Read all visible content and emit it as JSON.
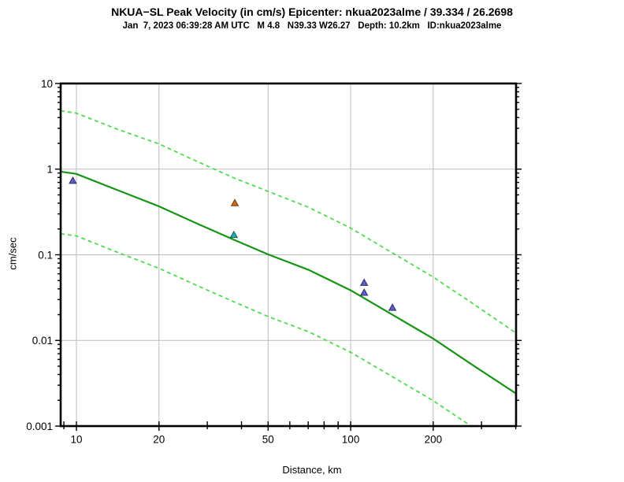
{
  "chart_data": {
    "type": "line",
    "title": "NKUA−SL Peak Velocity (in cm/s) Epicenter: nkua2023alme / 39.334 / 26.2698",
    "subtitle": "Jan  7, 2023 06:39:28 AM UTC   M 4.8   N39.33 W26.27   Depth: 10.2km   ID:nkua2023alme",
    "xlabel": "Distance, km",
    "ylabel": "cm/sec",
    "x_scale": "log",
    "y_scale": "log",
    "xlim": [
      8.76,
      401
    ],
    "ylim": [
      0.001,
      10
    ],
    "x_ticks": {
      "values": [
        10,
        20,
        50,
        100,
        200
      ],
      "labels": [
        "10",
        "20",
        "50",
        "100",
        "200"
      ]
    },
    "x_minor_ticks": [
      9,
      10,
      20,
      30,
      40,
      50,
      60,
      70,
      80,
      90,
      100,
      200,
      300,
      400
    ],
    "y_ticks": {
      "values": [
        10,
        1,
        0.1,
        0.01,
        0.001
      ],
      "labels": [
        "10",
        "1",
        "0.1",
        "0.01",
        "0.001"
      ]
    },
    "y_minor_pattern": [
      2,
      3,
      4,
      5,
      6,
      7,
      8,
      9
    ],
    "grid": {
      "x_values": [
        10,
        20,
        50,
        100,
        200
      ],
      "y_values": [
        1,
        0.1,
        0.01
      ],
      "color": "#bdbdbd"
    },
    "frame_color": "#000000",
    "legend": "none",
    "series": [
      {
        "name": "gmpe-median",
        "style": "solid",
        "color": "#169413",
        "width": 2.2,
        "points": [
          [
            8.76,
            0.935
          ],
          [
            10,
            0.88
          ],
          [
            14,
            0.575
          ],
          [
            20,
            0.368
          ],
          [
            28,
            0.226
          ],
          [
            37.5,
            0.15
          ],
          [
            50,
            0.101
          ],
          [
            70,
            0.067
          ],
          [
            100,
            0.0385
          ],
          [
            140,
            0.0205
          ],
          [
            200,
            0.0105
          ],
          [
            280,
            0.0051
          ],
          [
            401,
            0.0024
          ]
        ]
      },
      {
        "name": "gmpe-plus-sigma",
        "style": "dashed",
        "color": "#46dc46",
        "width": 1.7,
        "points": [
          [
            8.76,
            4.8
          ],
          [
            10,
            4.5
          ],
          [
            14,
            2.95
          ],
          [
            20,
            1.97
          ],
          [
            28,
            1.2
          ],
          [
            37.5,
            0.79
          ],
          [
            50,
            0.55
          ],
          [
            70,
            0.36
          ],
          [
            100,
            0.205
          ],
          [
            140,
            0.108
          ],
          [
            200,
            0.055
          ],
          [
            280,
            0.0267
          ],
          [
            401,
            0.0122
          ]
        ]
      },
      {
        "name": "gmpe-minus-sigma",
        "style": "dashed",
        "color": "#46dc46",
        "width": 1.7,
        "points": [
          [
            8.76,
            0.176
          ],
          [
            10,
            0.166
          ],
          [
            14,
            0.108
          ],
          [
            20,
            0.0695
          ],
          [
            28,
            0.0427
          ],
          [
            37.5,
            0.0283
          ],
          [
            50,
            0.019
          ],
          [
            70,
            0.0127
          ],
          [
            100,
            0.00727
          ],
          [
            140,
            0.00387
          ],
          [
            200,
            0.00198
          ],
          [
            280,
            0.00096
          ],
          [
            310,
            0.00078
          ]
        ]
      }
    ],
    "stations": [
      {
        "distance_km": 9.7,
        "pgv_cms": 0.73,
        "marker": "triangle",
        "color": "#5f5fc4",
        "edge": "#2a2a6e"
      },
      {
        "distance_km": 37.8,
        "pgv_cms": 0.4,
        "marker": "triangle",
        "color": "#d2691e",
        "edge": "#6b3a00"
      },
      {
        "distance_km": 37.5,
        "pgv_cms": 0.17,
        "marker": "triangle",
        "color": "#2aabab",
        "edge": "#0c5f5f"
      },
      {
        "distance_km": 112,
        "pgv_cms": 0.047,
        "marker": "triangle",
        "color": "#5f5fc4",
        "edge": "#2a2a6e"
      },
      {
        "distance_km": 112,
        "pgv_cms": 0.036,
        "marker": "triangle",
        "color": "#5f5fc4",
        "edge": "#2a2a6e"
      },
      {
        "distance_km": 142,
        "pgv_cms": 0.024,
        "marker": "triangle",
        "color": "#5f5fc4",
        "edge": "#2a2a6e"
      }
    ]
  }
}
